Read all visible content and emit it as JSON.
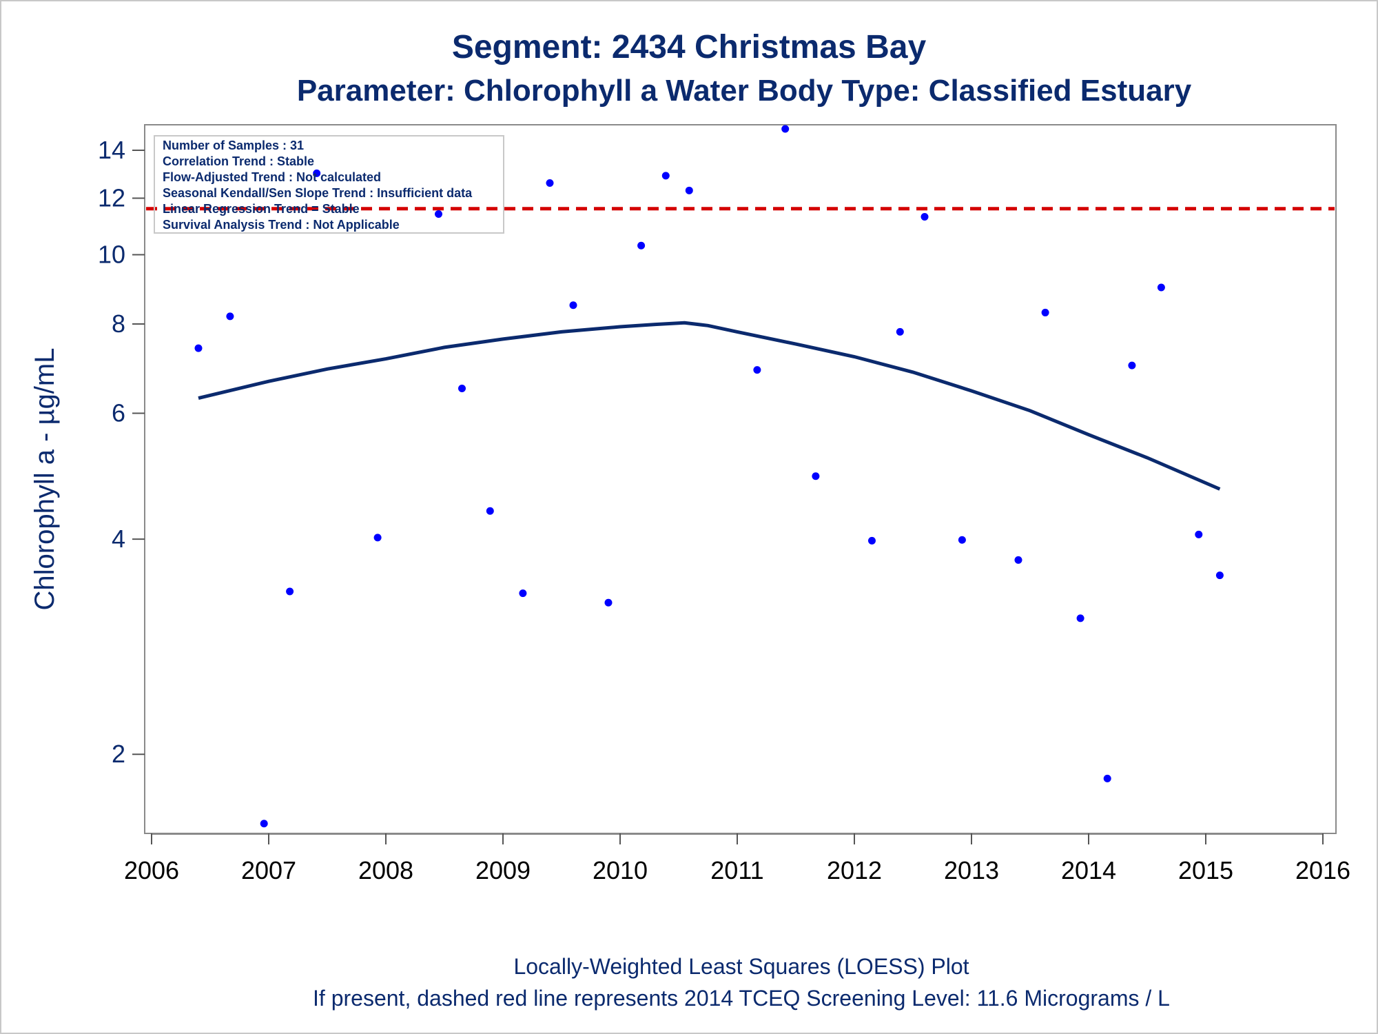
{
  "chart_data": {
    "type": "scatter",
    "title": "Segment: 2434  Christmas Bay",
    "subtitle": "Parameter: Chlorophyll a   Water Body Type: Classified Estuary",
    "ylabel": "Chlorophyll a -  µg/mL",
    "xlabel": "",
    "y_scale": "log",
    "ylim": [
      1.55,
      15.2
    ],
    "xlim": [
      2006,
      2016
    ],
    "y_ticks": [
      2,
      4,
      6,
      8,
      10,
      12,
      14
    ],
    "x_ticks": [
      2006,
      2007,
      2008,
      2009,
      2010,
      2011,
      2012,
      2013,
      2014,
      2015,
      2016
    ],
    "grid": false,
    "stats_box": [
      "Number of Samples : 31",
      "Correlation Trend : Stable",
      "Flow-Adjusted Trend : Not calculated",
      "Seasonal Kendall/Sen Slope Trend : Insufficient data",
      "Linear Regression Trend = Stable",
      "Survival Analysis Trend : Not Applicable"
    ],
    "screening_level": {
      "value": 11.6,
      "color": "#d40000",
      "style": "dashed"
    },
    "points": [
      {
        "x": 2006.4,
        "y": 7.4
      },
      {
        "x": 2006.67,
        "y": 8.2
      },
      {
        "x": 2006.96,
        "y": 1.6
      },
      {
        "x": 2007.18,
        "y": 3.38
      },
      {
        "x": 2007.41,
        "y": 13.0
      },
      {
        "x": 2007.93,
        "y": 4.02
      },
      {
        "x": 2008.45,
        "y": 11.4
      },
      {
        "x": 2008.65,
        "y": 6.5
      },
      {
        "x": 2008.89,
        "y": 4.38
      },
      {
        "x": 2009.17,
        "y": 3.36
      },
      {
        "x": 2009.4,
        "y": 12.6
      },
      {
        "x": 2009.6,
        "y": 8.5
      },
      {
        "x": 2009.9,
        "y": 3.26
      },
      {
        "x": 2010.18,
        "y": 10.3
      },
      {
        "x": 2010.39,
        "y": 12.9
      },
      {
        "x": 2010.59,
        "y": 12.3
      },
      {
        "x": 2011.17,
        "y": 6.9
      },
      {
        "x": 2011.41,
        "y": 15.0
      },
      {
        "x": 2011.67,
        "y": 4.9
      },
      {
        "x": 2012.15,
        "y": 3.98
      },
      {
        "x": 2012.39,
        "y": 7.8
      },
      {
        "x": 2012.6,
        "y": 11.3
      },
      {
        "x": 2012.92,
        "y": 3.99
      },
      {
        "x": 2013.4,
        "y": 3.74
      },
      {
        "x": 2013.63,
        "y": 8.3
      },
      {
        "x": 2013.93,
        "y": 3.1
      },
      {
        "x": 2014.16,
        "y": 1.85
      },
      {
        "x": 2014.37,
        "y": 7.0
      },
      {
        "x": 2014.62,
        "y": 9.0
      },
      {
        "x": 2014.94,
        "y": 4.06
      },
      {
        "x": 2015.12,
        "y": 3.56
      }
    ],
    "loess_curve": {
      "color": "#0b2a6e",
      "x": [
        2006.4,
        2007.0,
        2007.5,
        2008.0,
        2008.5,
        2009.0,
        2009.5,
        2010.0,
        2010.3,
        2010.55,
        2010.75,
        2011.0,
        2011.5,
        2012.0,
        2012.5,
        2013.0,
        2013.5,
        2014.0,
        2014.5,
        2015.12
      ],
      "y": [
        6.3,
        6.65,
        6.92,
        7.15,
        7.42,
        7.62,
        7.8,
        7.93,
        7.99,
        8.03,
        7.96,
        7.8,
        7.5,
        7.2,
        6.85,
        6.45,
        6.05,
        5.6,
        5.2,
        4.7
      ]
    },
    "point_color": "#0000ff"
  },
  "footnotes": [
    "Locally-Weighted Least Squares (LOESS) Plot",
    "If present, dashed red line represents 2014 TCEQ Screening Level: 11.6 Micrograms / L"
  ]
}
